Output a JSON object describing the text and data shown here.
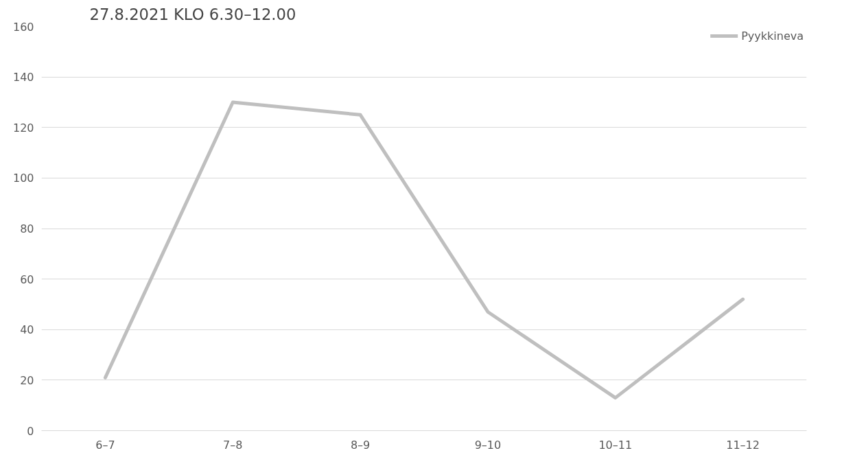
{
  "chart_data": {
    "type": "line",
    "title": "27.8.2021 KLO 6.30–12.00",
    "categories": [
      "6–7",
      "7–8",
      "8–9",
      "9–10",
      "10–11",
      "11–12"
    ],
    "series": [
      {
        "name": "Pyykkineva",
        "color": "#bfbfbf",
        "values": [
          21,
          130,
          125,
          47,
          13,
          52
        ]
      }
    ],
    "ylim": [
      0,
      160
    ],
    "yticks": [
      0,
      20,
      40,
      60,
      80,
      100,
      120,
      140,
      160
    ],
    "grid": "y",
    "legend": "top right",
    "line_style": "solid",
    "marker": "none"
  }
}
